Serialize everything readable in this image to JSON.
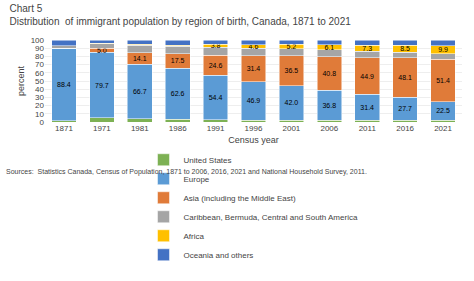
{
  "chart_data": {
    "type": "bar",
    "title": "Chart 5",
    "subtitle": "Distribution  of immigrant population by region of birth, Canada, 1871 to 2021",
    "xlabel": "Census year",
    "ylabel": "percent",
    "annotations": [
      "Sources:  Statistics Canada, Census of Population, 1871 to 2006, 2016, 2021 and National Household Survey, 2011."
    ],
    "categories": [
      "1871",
      "1971",
      "1981",
      "1986",
      "1991",
      "1996",
      "2001",
      "2006",
      "2011",
      "2016",
      "2021"
    ],
    "series": [
      {
        "name": "United States",
        "color": "#7db154",
        "values": [
          1.6,
          5.1,
          3.8,
          3.2,
          2.6,
          2.2,
          2.2,
          2.1,
          2.2,
          2.3,
          2.4
        ]
      },
      {
        "name": "Europe",
        "color": "#5b9bd5",
        "values": [
          88.4,
          79.7,
          66.7,
          62.6,
          54.4,
          46.9,
          42.0,
          36.8,
          31.4,
          27.7,
          22.5
        ],
        "data_labels": true,
        "value_labels": [
          "88.4",
          "79.7",
          "66.7",
          "62.6",
          "54.4",
          "46.9",
          "42.0",
          "36.8",
          "31.4",
          "27.7",
          "22.5"
        ]
      },
      {
        "name": "Asia (including the Middle East)",
        "color": "#e07b39",
        "values": [
          0.0,
          5.0,
          14.1,
          17.5,
          24.6,
          31.4,
          36.5,
          40.8,
          44.9,
          48.1,
          51.4
        ],
        "data_labels": true,
        "value_labels": [
          null,
          "5.0",
          "14.1",
          "17.5",
          "24.6",
          "31.4",
          "36.5",
          "40.8",
          "44.9",
          "48.1",
          "51.4"
        ]
      },
      {
        "name": "Caribbean, Bermuda, Central and South America",
        "color": "#a5a5a5",
        "values": [
          2.8,
          5.8,
          9.0,
          9.0,
          9.6,
          9.2,
          8.9,
          8.6,
          7.6,
          7.1,
          6.8
        ]
      },
      {
        "name": "Africa",
        "color": "#ffc000",
        "values": [
          0.0,
          0.5,
          1.0,
          1.2,
          3.8,
          4.6,
          5.2,
          6.1,
          7.3,
          8.5,
          9.9
        ],
        "data_labels": true,
        "value_labels": [
          null,
          null,
          null,
          null,
          "3.8",
          "4.6",
          "5.2",
          "6.1",
          "7.3",
          "8.5",
          "9.9"
        ]
      },
      {
        "name": "Oceania and others",
        "color": "#4472c4",
        "values": [
          7.2,
          3.9,
          5.4,
          6.5,
          5.0,
          5.7,
          5.2,
          5.6,
          6.6,
          6.3,
          7.0
        ]
      }
    ],
    "stacked": true,
    "ylim": [
      0,
      100
    ],
    "yticks": [
      0,
      10,
      20,
      30,
      40,
      50,
      60,
      70,
      80,
      90,
      100
    ],
    "grid": true,
    "legend": "bottom"
  }
}
